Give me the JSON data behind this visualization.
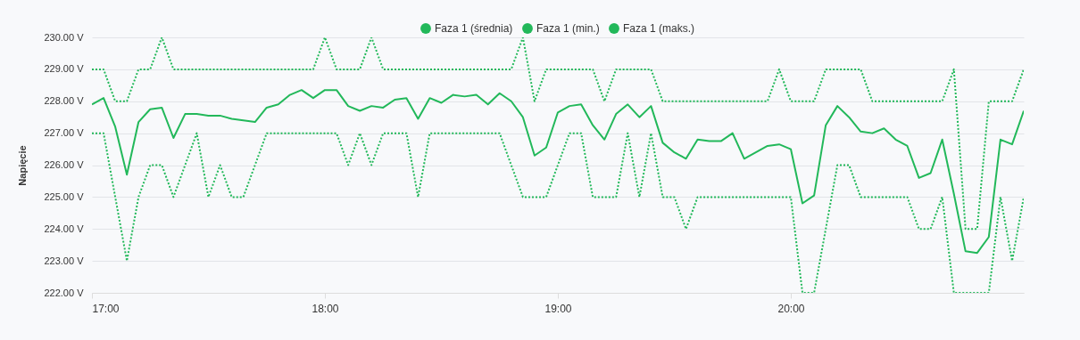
{
  "chart_data": {
    "type": "line",
    "ylabel": "Napięcie",
    "legend": "top",
    "grid": "y",
    "xlim": [
      17,
      21
    ],
    "xticks": [
      {
        "value": 17,
        "label": "17:00"
      },
      {
        "value": 18,
        "label": "18:00"
      },
      {
        "value": 19,
        "label": "19:00"
      },
      {
        "value": 20,
        "label": "20:00"
      }
    ],
    "ylim": [
      222,
      230
    ],
    "yticks": [
      {
        "value": 222,
        "label": "222.00 V"
      },
      {
        "value": 223,
        "label": "223.00 V"
      },
      {
        "value": 224,
        "label": "224.00 V"
      },
      {
        "value": 225,
        "label": "225.00 V"
      },
      {
        "value": 226,
        "label": "226.00 V"
      },
      {
        "value": 227,
        "label": "227.00 V"
      },
      {
        "value": 228,
        "label": "228.00 V"
      },
      {
        "value": 229,
        "label": "229.00 V"
      },
      {
        "value": 230,
        "label": "230.00 V"
      }
    ],
    "x": [
      17,
      17.05,
      17.1,
      17.15,
      17.2,
      17.25,
      17.3,
      17.35,
      17.4,
      17.45,
      17.5,
      17.55,
      17.6,
      17.65,
      17.7,
      17.75,
      17.8,
      17.85,
      17.9,
      17.95,
      18,
      18.05,
      18.1,
      18.15,
      18.2,
      18.25,
      18.3,
      18.35,
      18.4,
      18.45,
      18.5,
      18.55,
      18.6,
      18.65,
      18.7,
      18.75,
      18.8,
      18.85,
      18.9,
      18.95,
      19,
      19.05,
      19.1,
      19.15,
      19.2,
      19.25,
      19.3,
      19.35,
      19.4,
      19.45,
      19.5,
      19.55,
      19.6,
      19.65,
      19.7,
      19.75,
      19.8,
      19.85,
      19.9,
      19.95,
      20,
      20.05,
      20.1,
      20.15,
      20.2,
      20.25,
      20.3,
      20.35,
      20.4,
      20.45,
      20.5,
      20.55,
      20.6,
      20.65,
      20.7,
      20.75,
      20.8,
      20.85,
      20.9,
      20.95,
      21
    ],
    "series": [
      {
        "name": "Faza 1 (średnia)",
        "color": "#22b85a",
        "line_style": "solid",
        "values": [
          227.9,
          228.1,
          227.2,
          225.7,
          227.35,
          227.75,
          227.8,
          226.85,
          227.6,
          227.6,
          227.55,
          227.55,
          227.45,
          227.4,
          227.35,
          227.8,
          227.9,
          228.2,
          228.35,
          228.1,
          228.35,
          228.35,
          227.85,
          227.7,
          227.85,
          227.8,
          228.05,
          228.1,
          227.45,
          228.1,
          227.95,
          228.2,
          228.15,
          228.2,
          227.9,
          228.25,
          228.0,
          227.5,
          226.3,
          226.55,
          227.65,
          227.85,
          227.9,
          227.25,
          226.8,
          227.6,
          227.9,
          227.5,
          227.85,
          226.7,
          226.4,
          226.2,
          226.8,
          226.75,
          226.75,
          227.0,
          226.2,
          226.4,
          226.6,
          226.65,
          226.5,
          224.8,
          225.05,
          227.25,
          227.85,
          227.5,
          227.05,
          227.0,
          227.15,
          226.8,
          226.6,
          225.6,
          225.75,
          226.8,
          225.1,
          223.3,
          223.25,
          223.75,
          226.8,
          226.65,
          227.7
        ]
      },
      {
        "name": "Faza 1 (min.)",
        "color": "#22b85a",
        "line_style": "dotted",
        "values": [
          227,
          227,
          225,
          223,
          225,
          226,
          226,
          225,
          226,
          227,
          225,
          226,
          225,
          225,
          226,
          227,
          227,
          227,
          227,
          227,
          227,
          227,
          226,
          227,
          226,
          227,
          227,
          227,
          225,
          227,
          227,
          227,
          227,
          227,
          227,
          227,
          226,
          225,
          225,
          225,
          226,
          227,
          227,
          225,
          225,
          225,
          227,
          225,
          227,
          225,
          225,
          224,
          225,
          225,
          225,
          225,
          225,
          225,
          225,
          225,
          225,
          222,
          222,
          224,
          226,
          226,
          225,
          225,
          225,
          225,
          225,
          224,
          224,
          225,
          222,
          222,
          222,
          222,
          225,
          223,
          225
        ]
      },
      {
        "name": "Faza 1 (maks.)",
        "color": "#22b85a",
        "line_style": "dotted",
        "values": [
          229,
          229,
          228,
          228,
          229,
          229,
          230,
          229,
          229,
          229,
          229,
          229,
          229,
          229,
          229,
          229,
          229,
          229,
          229,
          229,
          230,
          229,
          229,
          229,
          230,
          229,
          229,
          229,
          229,
          229,
          229,
          229,
          229,
          229,
          229,
          229,
          229,
          230,
          228,
          229,
          229,
          229,
          229,
          229,
          228,
          229,
          229,
          229,
          229,
          228,
          228,
          228,
          228,
          228,
          228,
          228,
          228,
          228,
          228,
          229,
          228,
          228,
          228,
          229,
          229,
          229,
          229,
          228,
          228,
          228,
          228,
          228,
          228,
          228,
          229,
          224,
          224,
          228,
          228,
          228,
          229
        ]
      }
    ]
  }
}
